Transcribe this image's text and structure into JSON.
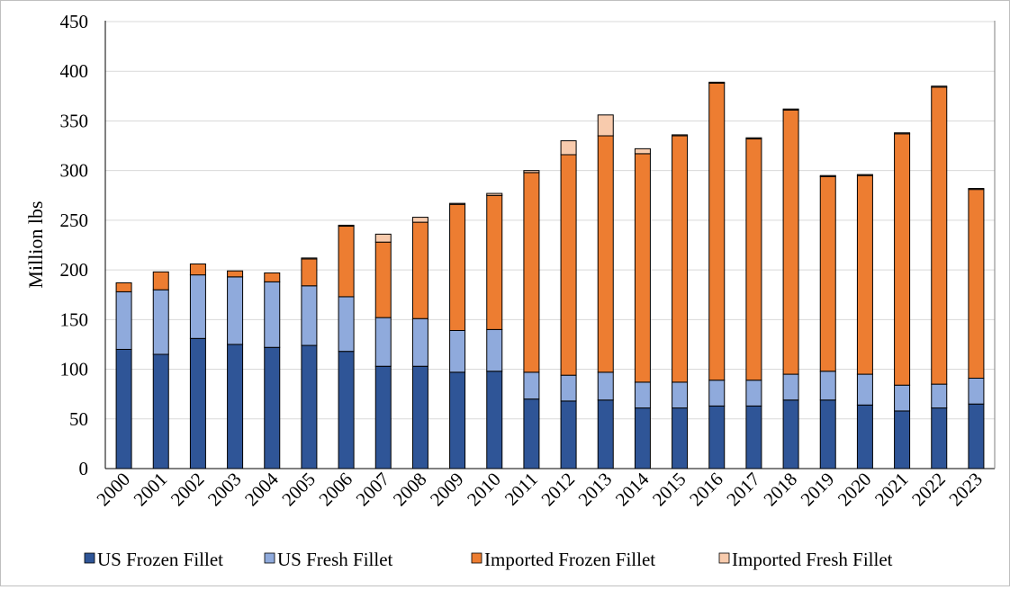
{
  "chart_data": {
    "type": "stacked-bar",
    "title": "",
    "xlabel": "",
    "ylabel": "Million lbs",
    "ylim": [
      0,
      450
    ],
    "yticks": [
      0,
      50,
      100,
      150,
      200,
      250,
      300,
      350,
      400,
      450
    ],
    "grid": true,
    "legend_position": "bottom",
    "categories": [
      "2000",
      "2001",
      "2002",
      "2003",
      "2004",
      "2005",
      "2006",
      "2007",
      "2008",
      "2009",
      "2010",
      "2011",
      "2012",
      "2013",
      "2014",
      "2015",
      "2016",
      "2017",
      "2018",
      "2019",
      "2020",
      "2021",
      "2022",
      "2023"
    ],
    "series": [
      {
        "name": "US Frozen Fillet",
        "color": "#2f5597",
        "values": [
          120,
          115,
          131,
          125,
          122,
          124,
          118,
          103,
          103,
          97,
          98,
          70,
          68,
          69,
          61,
          61,
          63,
          63,
          69,
          69,
          64,
          58,
          61,
          65
        ]
      },
      {
        "name": "US Fresh Fillet",
        "color": "#8faadc",
        "values": [
          58,
          65,
          64,
          68,
          66,
          60,
          55,
          49,
          48,
          42,
          42,
          27,
          26,
          28,
          26,
          26,
          26,
          26,
          26,
          29,
          31,
          26,
          24,
          26
        ]
      },
      {
        "name": "Imported Frozen Fillet",
        "color": "#ed7d31",
        "values": [
          9,
          18,
          11,
          6,
          9,
          27,
          71,
          76,
          97,
          127,
          135,
          201,
          222,
          238,
          230,
          248,
          299,
          243,
          266,
          196,
          200,
          253,
          299,
          190
        ]
      },
      {
        "name": "Imported Fresh Fillet",
        "color": "#f8cbad",
        "values": [
          0,
          0,
          0,
          0,
          0,
          1,
          1,
          8,
          5,
          1,
          2,
          2,
          14,
          21,
          5,
          1,
          1,
          1,
          1,
          1,
          1,
          1,
          1,
          1
        ]
      }
    ]
  }
}
